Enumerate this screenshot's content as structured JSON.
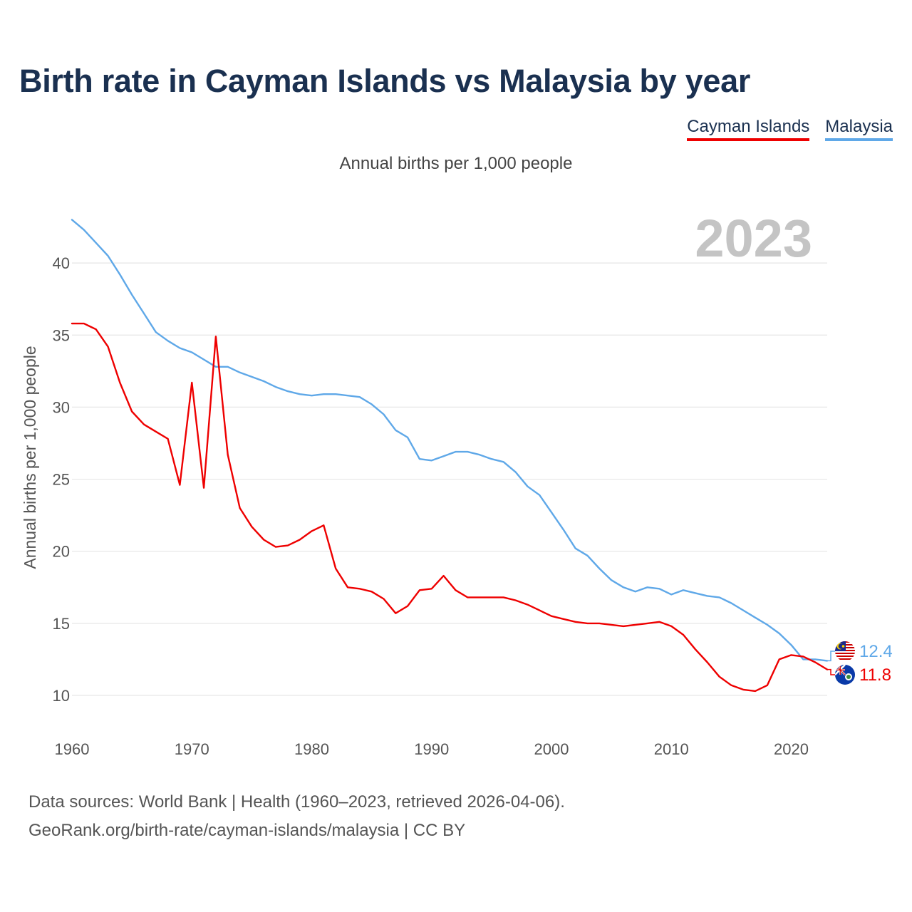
{
  "title": "Birth rate in Cayman Islands vs Malaysia by year",
  "subtitle": "Annual births per 1,000 people",
  "footer": {
    "line1": "Data sources: World Bank | Health (1960–2023, retrieved 2026-04-06).",
    "line2": "GeoRank.org/birth-rate/cayman-islands/malaysia | CC BY"
  },
  "colors": {
    "cayman": "#ee0000",
    "malaysia": "#5fa8e8",
    "grid": "#e6e6e6",
    "year": "#c4c4c4"
  },
  "chart_data": {
    "type": "line",
    "title": "Birth rate in Cayman Islands vs Malaysia by year",
    "subtitle": "Annual births per 1,000 people",
    "xlabel": "",
    "ylabel": "Annual births per 1,000 people",
    "xlim": [
      1960,
      2023
    ],
    "ylim": [
      8,
      44
    ],
    "x_ticks": [
      1960,
      1970,
      1980,
      1990,
      2000,
      2010,
      2020
    ],
    "y_ticks": [
      10,
      15,
      20,
      25,
      30,
      35,
      40
    ],
    "year_label": "2023",
    "legend": [
      "Cayman Islands",
      "Malaysia"
    ],
    "x": [
      1960,
      1961,
      1962,
      1963,
      1964,
      1965,
      1966,
      1967,
      1968,
      1969,
      1970,
      1971,
      1972,
      1973,
      1974,
      1975,
      1976,
      1977,
      1978,
      1979,
      1980,
      1981,
      1982,
      1983,
      1984,
      1985,
      1986,
      1987,
      1988,
      1989,
      1990,
      1991,
      1992,
      1993,
      1994,
      1995,
      1996,
      1997,
      1998,
      1999,
      2000,
      2001,
      2002,
      2003,
      2004,
      2005,
      2006,
      2007,
      2008,
      2009,
      2010,
      2011,
      2012,
      2013,
      2014,
      2015,
      2016,
      2017,
      2018,
      2019,
      2020,
      2021,
      2022,
      2023
    ],
    "series": [
      {
        "name": "Cayman Islands",
        "color": "#ee0000",
        "end_label": "11.8",
        "flag": "cayman-islands-flag",
        "values": [
          35.8,
          35.8,
          35.4,
          34.2,
          31.7,
          29.7,
          28.8,
          28.3,
          27.8,
          24.6,
          31.7,
          24.4,
          34.9,
          26.7,
          23.0,
          21.7,
          20.8,
          20.3,
          20.4,
          20.8,
          21.4,
          21.8,
          18.8,
          17.5,
          17.4,
          17.2,
          16.7,
          15.7,
          16.2,
          17.3,
          17.4,
          18.3,
          17.3,
          16.8,
          16.8,
          16.8,
          16.8,
          16.6,
          16.3,
          15.9,
          15.5,
          15.3,
          15.1,
          15.0,
          15.0,
          14.9,
          14.8,
          14.9,
          15.0,
          15.1,
          14.8,
          14.2,
          13.2,
          12.3,
          11.3,
          10.7,
          10.4,
          10.3,
          10.7,
          12.5,
          12.8,
          12.7,
          12.3,
          11.8
        ]
      },
      {
        "name": "Malaysia",
        "color": "#5fa8e8",
        "end_label": "12.4",
        "flag": "malaysia-flag",
        "values": [
          43.0,
          42.3,
          41.4,
          40.5,
          39.2,
          37.8,
          36.5,
          35.2,
          34.6,
          34.1,
          33.8,
          33.3,
          32.8,
          32.8,
          32.4,
          32.1,
          31.8,
          31.4,
          31.1,
          30.9,
          30.8,
          30.9,
          30.9,
          30.8,
          30.7,
          30.2,
          29.5,
          28.4,
          27.9,
          26.4,
          26.3,
          26.6,
          26.9,
          26.9,
          26.7,
          26.4,
          26.2,
          25.5,
          24.5,
          23.9,
          22.7,
          21.5,
          20.2,
          19.7,
          18.8,
          18.0,
          17.5,
          17.2,
          17.5,
          17.4,
          17.0,
          17.3,
          17.1,
          16.9,
          16.8,
          16.4,
          15.9,
          15.4,
          14.9,
          14.3,
          13.5,
          12.5,
          12.5,
          12.4
        ]
      }
    ]
  }
}
